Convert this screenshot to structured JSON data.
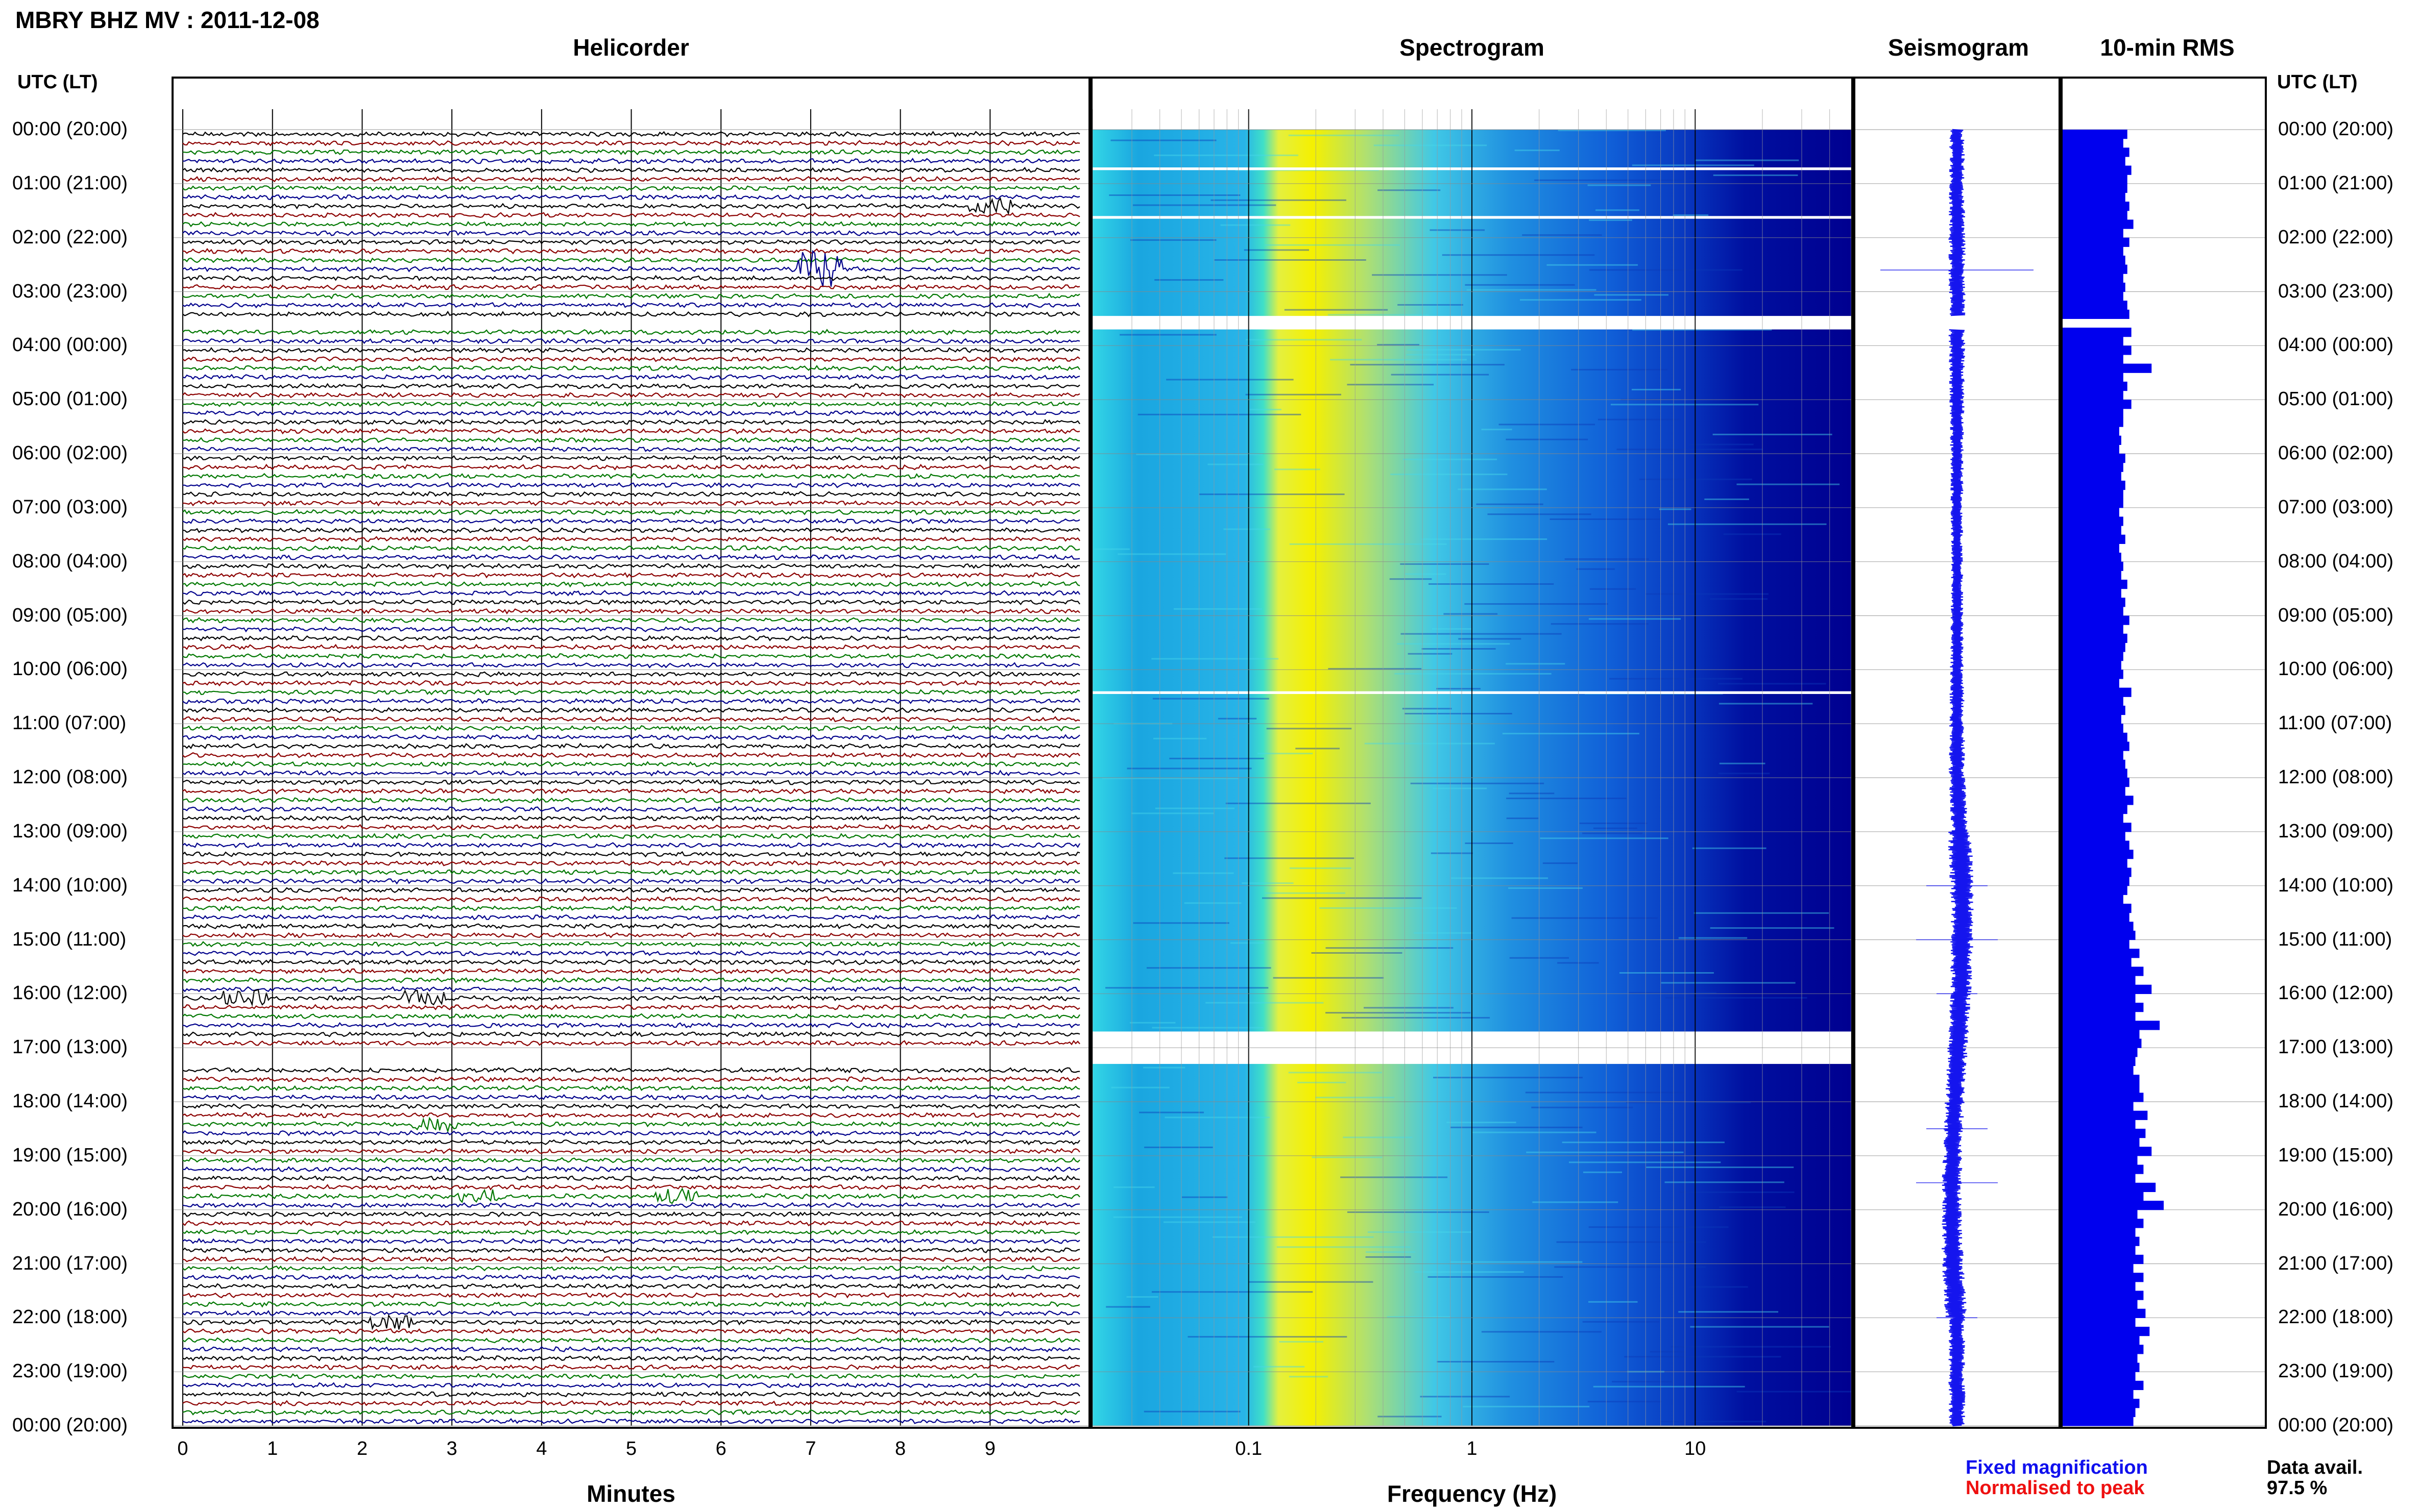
{
  "header": {
    "station_title": "MBRY BHZ MV : 2011-12-08",
    "utc_lt_label": "UTC (LT)"
  },
  "panels": {
    "helicorder": "Helicorder",
    "spectrogram": "Spectrogram",
    "seismogram": "Seismogram",
    "rms": "10-min RMS"
  },
  "time_labels": [
    "00:00 (20:00)",
    "01:00 (21:00)",
    "02:00 (22:00)",
    "03:00 (23:00)",
    "04:00 (00:00)",
    "05:00 (01:00)",
    "06:00 (02:00)",
    "07:00 (03:00)",
    "08:00 (04:00)",
    "09:00 (05:00)",
    "10:00 (06:00)",
    "11:00 (07:00)",
    "12:00 (08:00)",
    "13:00 (09:00)",
    "14:00 (10:00)",
    "15:00 (11:00)",
    "16:00 (12:00)",
    "17:00 (13:00)",
    "18:00 (14:00)",
    "19:00 (15:00)",
    "20:00 (16:00)",
    "21:00 (17:00)",
    "22:00 (18:00)",
    "23:00 (19:00)",
    "00:00 (20:00)"
  ],
  "footer": {
    "fixed_magnification": "Fixed magnification",
    "normalised_to_peak": "Normalised to peak",
    "data_avail_label": "Data avail.",
    "data_avail_value": "97.5 %"
  },
  "colors": {
    "trace_cycle": [
      "#000000",
      "#8b0000",
      "#007700",
      "#00008b"
    ],
    "fixed_magnification": "#1010ee",
    "normalised_to_peak": "#ee1010",
    "rms_bar": "#0000ee",
    "spectrogram_low": "#0000a0",
    "spectrogram_peak": "#f5f000"
  },
  "chart_data": [
    {
      "type": "line",
      "name": "helicorder",
      "title": "Helicorder",
      "xlabel": "Minutes",
      "xlim": [
        0,
        10
      ],
      "x_ticks": [
        "0",
        "1",
        "2",
        "3",
        "4",
        "5",
        "6",
        "7",
        "8",
        "9"
      ],
      "rows_per_hour": 6,
      "hours": 24,
      "grid": true,
      "events": [
        {
          "hour": 2.5,
          "minute": 7.1,
          "amp": 5
        },
        {
          "hour": 1.35,
          "minute": 9.0,
          "amp": 2
        },
        {
          "hour": 16.0,
          "minute": 0.7,
          "amp": 2.5
        },
        {
          "hour": 16.0,
          "minute": 2.7,
          "amp": 2
        },
        {
          "hour": 18.4,
          "minute": 2.8,
          "amp": 2
        },
        {
          "hour": 19.6,
          "minute": 3.3,
          "amp": 2
        },
        {
          "hour": 19.6,
          "minute": 5.5,
          "amp": 2
        },
        {
          "hour": 22.0,
          "minute": 2.3,
          "amp": 2
        }
      ],
      "gaps_hours": [
        [
          3.5,
          3.6
        ],
        [
          17.0,
          17.2
        ]
      ]
    },
    {
      "type": "heatmap",
      "name": "spectrogram",
      "title": "Spectrogram",
      "xlabel": "Frequency (Hz)",
      "x_scale": "log",
      "xlim": [
        0.02,
        50
      ],
      "x_ticks": [
        "0.1",
        "1",
        "10"
      ],
      "peak_band_hz": [
        0.15,
        0.6
      ],
      "gaps_hours": [
        [
          0.7,
          0.75
        ],
        [
          1.6,
          1.65
        ],
        [
          3.45,
          3.7
        ],
        [
          10.4,
          10.45
        ],
        [
          16.7,
          17.3
        ]
      ]
    },
    {
      "type": "line",
      "name": "seismogram",
      "title": "Seismogram",
      "spike_hours": [
        2.6,
        14.0,
        15.0,
        16.0,
        18.5,
        19.5,
        22.0
      ],
      "gaps_hours": [
        [
          3.45,
          3.7
        ]
      ]
    },
    {
      "type": "bar",
      "name": "rms",
      "title": "10-min RMS",
      "bins": 144,
      "xlim": [
        0,
        1
      ],
      "values": [
        0.32,
        0.3,
        0.33,
        0.31,
        0.34,
        0.32,
        0.32,
        0.31,
        0.33,
        0.32,
        0.35,
        0.3,
        0.33,
        0.3,
        0.31,
        0.32,
        0.3,
        0.31,
        0.3,
        0.32,
        0.33,
        0.3,
        0.34,
        0.3,
        0.34,
        0.3,
        0.44,
        0.3,
        0.32,
        0.3,
        0.34,
        0.3,
        0.3,
        0.28,
        0.29,
        0.28,
        0.31,
        0.3,
        0.29,
        0.31,
        0.3,
        0.3,
        0.28,
        0.3,
        0.29,
        0.31,
        0.28,
        0.29,
        0.3,
        0.29,
        0.32,
        0.29,
        0.31,
        0.3,
        0.33,
        0.3,
        0.32,
        0.31,
        0.3,
        0.29,
        0.3,
        0.28,
        0.34,
        0.3,
        0.31,
        0.29,
        0.3,
        0.32,
        0.33,
        0.3,
        0.31,
        0.32,
        0.33,
        0.31,
        0.35,
        0.32,
        0.3,
        0.34,
        0.31,
        0.33,
        0.35,
        0.32,
        0.34,
        0.33,
        0.32,
        0.3,
        0.34,
        0.33,
        0.35,
        0.36,
        0.33,
        0.38,
        0.34,
        0.4,
        0.36,
        0.44,
        0.36,
        0.4,
        0.36,
        0.48,
        0.38,
        0.39,
        0.37,
        0.36,
        0.35,
        0.38,
        0.38,
        0.4,
        0.35,
        0.42,
        0.36,
        0.41,
        0.38,
        0.44,
        0.37,
        0.4,
        0.36,
        0.46,
        0.4,
        0.5,
        0.37,
        0.4,
        0.36,
        0.38,
        0.36,
        0.4,
        0.35,
        0.4,
        0.36,
        0.4,
        0.37,
        0.41,
        0.36,
        0.43,
        0.38,
        0.4,
        0.37,
        0.38,
        0.36,
        0.4,
        0.35,
        0.38,
        0.36,
        0.35
      ]
    }
  ]
}
